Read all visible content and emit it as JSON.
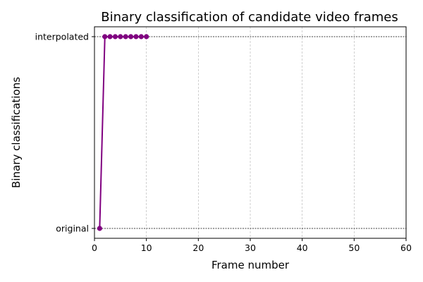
{
  "chart_data": {
    "type": "line",
    "title": "Binary classification of candidate video frames",
    "xlabel": "Frame number",
    "ylabel": "Binary classifications",
    "xlim": [
      0,
      60
    ],
    "x_ticks": [
      0,
      10,
      20,
      30,
      40,
      50,
      60
    ],
    "y_categories": [
      "original",
      "interpolated"
    ],
    "grid": true,
    "series": [
      {
        "color": "#800080",
        "marker": "circle",
        "x": [
          1,
          2,
          3,
          4,
          5,
          6,
          7,
          8,
          9,
          10
        ],
        "y": [
          0,
          1,
          1,
          1,
          1,
          1,
          1,
          1,
          1,
          1
        ]
      }
    ]
  }
}
